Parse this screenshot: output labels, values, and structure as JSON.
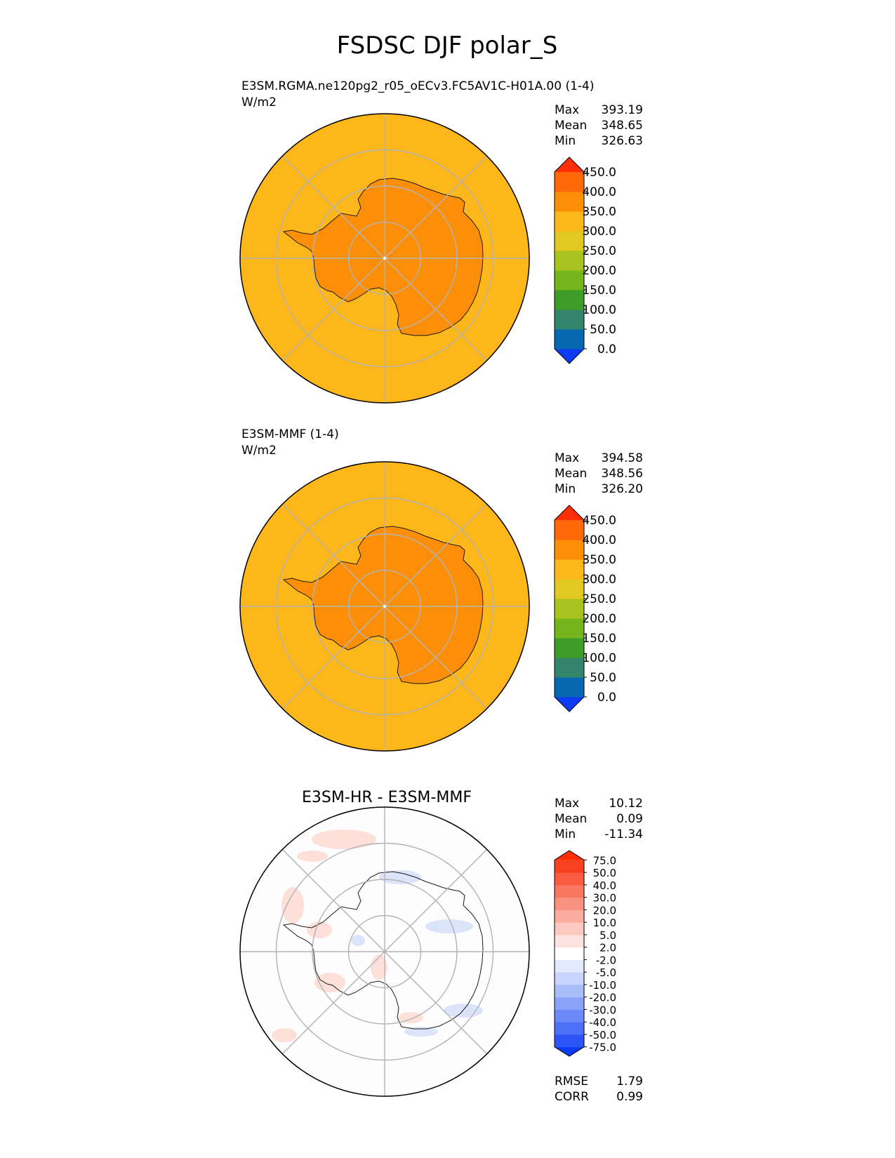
{
  "figure": {
    "title": "FSDSC DJF polar_S"
  },
  "chart_data": [
    {
      "type": "heatmap",
      "projection": "south-polar-stereographic",
      "title_left": "E3SM.RGMA.ne120pg2_r05_oECv3.FC5AV1C-H01A.00 (1-4)",
      "units": "W/m2",
      "stats": {
        "max": "393.19",
        "mean": "348.65",
        "min": "326.63"
      },
      "stat_labels": {
        "max": "Max",
        "mean": "Mean",
        "min": "Min"
      },
      "ocean_color": "#fdb71b",
      "land_color": "#fd8f08",
      "colorbar": {
        "colors": [
          "#0d3bf5",
          "#0669b0",
          "#33856e",
          "#3e9c29",
          "#74b51b",
          "#a8c21f",
          "#e1c921",
          "#fdb71b",
          "#fd8f08",
          "#fe6808",
          "#fe2f06"
        ],
        "tick_labels": [
          "0.0",
          "50.0",
          "100.0",
          "150.0",
          "200.0",
          "250.0",
          "300.0",
          "350.0",
          "400.0",
          "450.0"
        ],
        "extend": "both"
      }
    },
    {
      "type": "heatmap",
      "projection": "south-polar-stereographic",
      "title_left": "E3SM-MMF (1-4)",
      "units": "W/m2",
      "stats": {
        "max": "394.58",
        "mean": "348.56",
        "min": "326.20"
      },
      "stat_labels": {
        "max": "Max",
        "mean": "Mean",
        "min": "Min"
      },
      "ocean_color": "#fdb71b",
      "land_color": "#fd8f08",
      "colorbar": {
        "colors": [
          "#0d3bf5",
          "#0669b0",
          "#33856e",
          "#3e9c29",
          "#74b51b",
          "#a8c21f",
          "#e1c921",
          "#fdb71b",
          "#fd8f08",
          "#fe6808",
          "#fe2f06"
        ],
        "tick_labels": [
          "0.0",
          "50.0",
          "100.0",
          "150.0",
          "200.0",
          "250.0",
          "300.0",
          "350.0",
          "400.0",
          "450.0"
        ],
        "extend": "both"
      }
    },
    {
      "type": "heatmap",
      "projection": "south-polar-stereographic",
      "title_center": "E3SM-HR - E3SM-MMF",
      "stats": {
        "max": "10.12",
        "mean": "0.09",
        "min": "-11.34"
      },
      "stat_labels": {
        "max": "Max",
        "mean": "Mean",
        "min": "Min"
      },
      "metrics": {
        "rmse_label": "RMSE",
        "rmse": "1.79",
        "corr_label": "CORR",
        "corr": "0.99"
      },
      "background_color": "#fdfdfd",
      "positive_patch_color": "#fde0da",
      "negative_patch_color": "#dce4fb",
      "colorbar": {
        "colors": [
          "#0d3bf5",
          "#2d55f6",
          "#4c6ff7",
          "#6b89f8",
          "#8aa3f9",
          "#a9bdfa",
          "#c8d4fb",
          "#e3e9fc",
          "#ffffff",
          "#fde3df",
          "#fdc8bf",
          "#fcad9f",
          "#fb927f",
          "#fa775f",
          "#f95c3f",
          "#f8411f",
          "#fe2f06"
        ],
        "tick_labels": [
          "-75.0",
          "-50.0",
          "-40.0",
          "-30.0",
          "-20.0",
          "-10.0",
          "-5.0",
          "-2.0",
          "2.0",
          "5.0",
          "10.0",
          "20.0",
          "30.0",
          "40.0",
          "50.0",
          "75.0"
        ],
        "extend": "both"
      }
    }
  ]
}
